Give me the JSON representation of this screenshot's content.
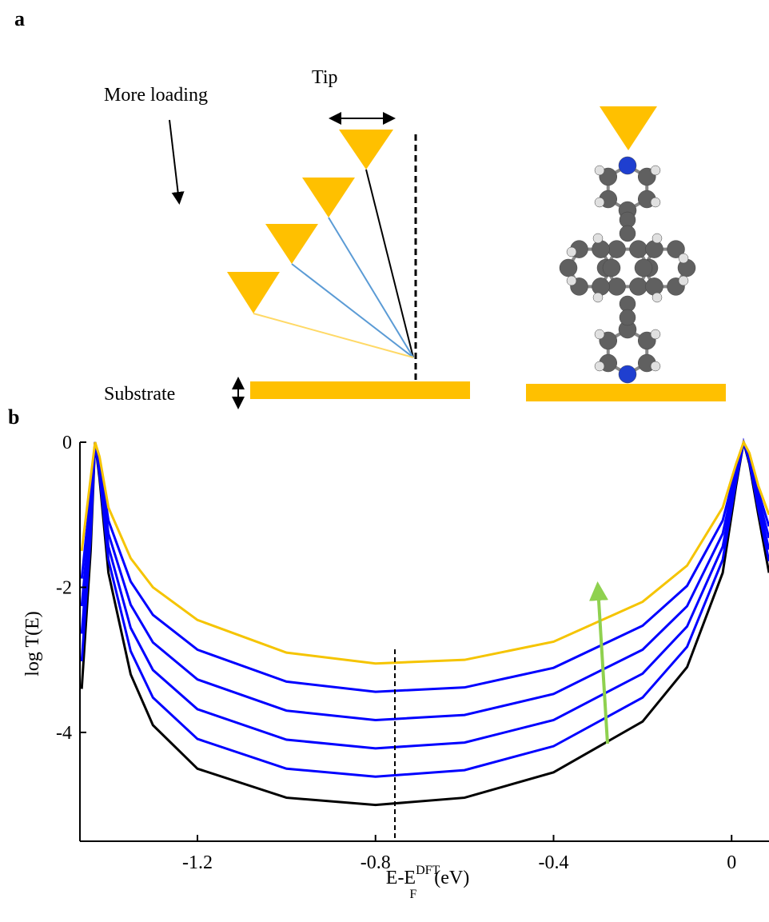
{
  "panel_a": {
    "label": "a",
    "loading": "More loading",
    "tip": "Tip",
    "substrate": "Substrate"
  },
  "chart_data": {
    "type": "line",
    "label": "b",
    "ylabel": "log T(E)",
    "xlabel": {
      "base": "E-E",
      "sup": "DFT",
      "sub": "F",
      "unit": "(eV)"
    },
    "x": [
      -1.46,
      -1.44,
      -1.43,
      -1.42,
      -1.4,
      -1.35,
      -1.3,
      -1.2,
      -1.0,
      -0.8,
      -0.6,
      -0.4,
      -0.2,
      -0.1,
      -0.02,
      0.01,
      0.027,
      0.04,
      0.06,
      0.084
    ],
    "series": [
      {
        "color": "#000000",
        "values": [
          -3.4,
          -1.5,
          0,
          -0.5,
          -1.8,
          -3.2,
          -3.9,
          -4.5,
          -4.9,
          -5.0,
          -4.9,
          -4.55,
          -3.85,
          -3.1,
          -1.8,
          -0.6,
          0,
          -0.3,
          -1.0,
          -1.8
        ]
      },
      {
        "color": "#0000ff",
        "values": [
          -3.02,
          -1.3,
          0,
          -0.44,
          -1.62,
          -2.88,
          -3.52,
          -4.09,
          -4.5,
          -4.61,
          -4.52,
          -4.19,
          -3.52,
          -2.82,
          -1.62,
          -0.54,
          0,
          -0.27,
          -0.92,
          -1.64
        ]
      },
      {
        "color": "#0000ff",
        "values": [
          -2.64,
          -1.1,
          0,
          -0.38,
          -1.44,
          -2.56,
          -3.14,
          -3.68,
          -4.1,
          -4.22,
          -4.14,
          -3.83,
          -3.19,
          -2.54,
          -1.44,
          -0.48,
          0,
          -0.24,
          -0.84,
          -1.48
        ]
      },
      {
        "color": "#0000ff",
        "values": [
          -2.26,
          -0.9,
          0,
          -0.32,
          -1.26,
          -2.24,
          -2.76,
          -3.27,
          -3.7,
          -3.83,
          -3.76,
          -3.47,
          -2.86,
          -2.26,
          -1.26,
          -0.42,
          0,
          -0.21,
          -0.76,
          -1.32
        ]
      },
      {
        "color": "#0000ff",
        "values": [
          -1.88,
          -0.7,
          0,
          -0.26,
          -1.08,
          -1.92,
          -2.38,
          -2.86,
          -3.3,
          -3.44,
          -3.38,
          -3.11,
          -2.53,
          -1.98,
          -1.08,
          -0.36,
          0,
          -0.18,
          -0.68,
          -1.16
        ]
      },
      {
        "color": "#f5c400",
        "values": [
          -1.5,
          -0.5,
          0,
          -0.2,
          -0.9,
          -1.6,
          -2.0,
          -2.45,
          -2.9,
          -3.05,
          -3.0,
          -2.75,
          -2.2,
          -1.7,
          -0.9,
          -0.3,
          0,
          -0.15,
          -0.6,
          -1.0
        ]
      }
    ],
    "xlim": [
      -1.464,
      0.084
    ],
    "ylim": [
      -5.5,
      0
    ],
    "xticks": [
      -1.2,
      -0.8,
      -0.4,
      0
    ],
    "yticks": [
      0,
      -2,
      -4
    ]
  }
}
